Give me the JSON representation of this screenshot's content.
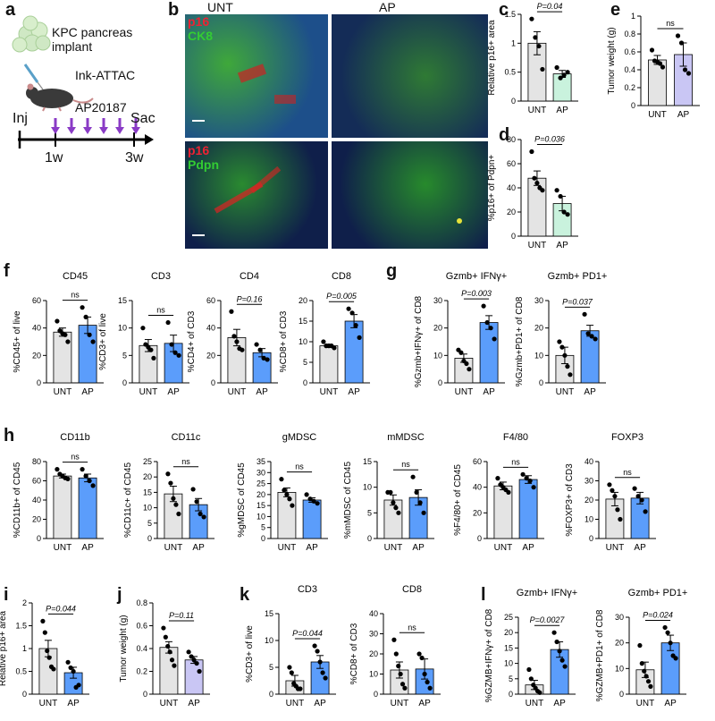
{
  "panels": {
    "a": {
      "label": "a",
      "implant_text": "KPC pancreas\nimplant",
      "mouse_text": "Ink-ATTAC",
      "drug_text": "AP20187",
      "inj": "Inj",
      "sac": "Sac",
      "t1": "1w",
      "t3": "3w"
    },
    "b": {
      "label": "b",
      "col_untreated": "UNT",
      "col_ap": "AP",
      "top_stain_red": "p16",
      "top_stain_green": "CK8",
      "bottom_stain_red": "p16",
      "bottom_stain_green": "Pdpn"
    },
    "c": {
      "label": "c"
    },
    "d": {
      "label": "d"
    },
    "e": {
      "label": "e"
    },
    "f": {
      "label": "f"
    },
    "g": {
      "label": "g"
    },
    "h": {
      "label": "h"
    },
    "i": {
      "label": "i"
    },
    "j": {
      "label": "j"
    },
    "k": {
      "label": "k"
    },
    "l": {
      "label": "l"
    }
  },
  "colors": {
    "unt": "#e4e4e4",
    "ap_green": "#c9f2dd",
    "ap_purple": "#c9c6f4",
    "ap_blue": "#5b9dfb"
  },
  "chart_data": [
    {
      "id": "c",
      "type": "bar",
      "categories": [
        "UNT",
        "AP"
      ],
      "values": [
        1.0,
        0.47
      ],
      "errors": [
        0.2,
        0.06
      ],
      "points": [
        [
          1.42,
          1.1,
          0.95,
          0.55
        ],
        [
          0.58,
          0.4,
          0.45,
          0.5
        ]
      ],
      "title": "",
      "ylabel": "Relative p16+ area",
      "ylim": [
        0,
        1.5
      ],
      "yticks": [
        0.0,
        0.5,
        1.0,
        1.5
      ],
      "stat": "P=0.04",
      "ap_color": "ap_green"
    },
    {
      "id": "d",
      "type": "bar",
      "categories": [
        "UNT",
        "AP"
      ],
      "values": [
        48,
        27
      ],
      "errors": [
        6,
        6
      ],
      "points": [
        [
          70,
          48,
          44,
          40,
          38
        ],
        [
          38,
          33,
          20,
          18
        ]
      ],
      "title": "",
      "ylabel": "%p16+ of Pdpn+",
      "ylim": [
        0,
        80
      ],
      "yticks": [
        0,
        20,
        40,
        60,
        80
      ],
      "stat": "P=0.036",
      "ap_color": "ap_green"
    },
    {
      "id": "e",
      "type": "bar",
      "categories": [
        "UNT",
        "AP"
      ],
      "values": [
        0.51,
        0.57
      ],
      "errors": [
        0.05,
        0.13
      ],
      "points": [
        [
          0.62,
          0.5,
          0.49,
          0.47,
          0.43
        ],
        [
          0.78,
          0.7,
          0.4,
          0.36
        ]
      ],
      "title": "",
      "ylabel": "Tumor weight (g)",
      "ylim": [
        0,
        1.0
      ],
      "yticks": [
        0.0,
        0.2,
        0.4,
        0.6,
        0.8,
        1.0
      ],
      "stat": "ns",
      "ap_color": "ap_purple"
    },
    {
      "id": "f1",
      "type": "bar",
      "categories": [
        "UNT",
        "AP"
      ],
      "values": [
        37,
        42
      ],
      "errors": [
        3,
        6
      ],
      "points": [
        [
          45,
          38,
          36,
          35,
          30
        ],
        [
          55,
          48,
          35,
          30
        ]
      ],
      "title": "CD45",
      "ylabel": "%CD45+ of live",
      "ylim": [
        0,
        60
      ],
      "yticks": [
        0,
        20,
        40,
        60
      ],
      "stat": "ns",
      "ap_color": "ap_blue"
    },
    {
      "id": "f2",
      "type": "bar",
      "categories": [
        "UNT",
        "AP"
      ],
      "values": [
        6.8,
        7.2
      ],
      "errors": [
        1.1,
        1.5
      ],
      "points": [
        [
          10,
          7,
          6.5,
          6,
          4.5
        ],
        [
          11,
          7,
          5.5,
          5
        ]
      ],
      "title": "CD3",
      "ylabel": "%CD3+ of live",
      "ylim": [
        0,
        15
      ],
      "yticks": [
        0,
        5,
        10,
        15
      ],
      "stat": "ns",
      "ap_color": "ap_blue"
    },
    {
      "id": "f3",
      "type": "bar",
      "categories": [
        "UNT",
        "AP"
      ],
      "values": [
        33,
        22
      ],
      "errors": [
        6,
        3
      ],
      "points": [
        [
          52,
          34,
          30,
          25,
          24
        ],
        [
          28,
          24,
          18,
          17
        ]
      ],
      "title": "CD4",
      "ylabel": "%CD4+ of CD3",
      "ylim": [
        0,
        60
      ],
      "yticks": [
        0,
        20,
        40,
        60
      ],
      "stat": "P=0.16",
      "ap_color": "ap_blue"
    },
    {
      "id": "f4",
      "type": "bar",
      "categories": [
        "UNT",
        "AP"
      ],
      "values": [
        9,
        15
      ],
      "errors": [
        0.4,
        1.6
      ],
      "points": [
        [
          10,
          9,
          9,
          9,
          8.5
        ],
        [
          18,
          17,
          14,
          11
        ]
      ],
      "title": "CD8",
      "ylabel": "%CD8+ of CD3",
      "ylim": [
        0,
        20
      ],
      "yticks": [
        0,
        5,
        10,
        15,
        20
      ],
      "stat": "P=0.005",
      "ap_color": "ap_blue"
    },
    {
      "id": "g1",
      "type": "bar",
      "categories": [
        "UNT",
        "AP"
      ],
      "values": [
        9,
        22
      ],
      "errors": [
        1.5,
        2.5
      ],
      "points": [
        [
          12,
          11,
          8,
          7,
          5
        ],
        [
          28,
          22,
          20,
          16
        ]
      ],
      "title": "Gzmb+ IFNγ+",
      "ylabel": "%Gzmb+IFNγ+ of CD8",
      "ylim": [
        0,
        30
      ],
      "yticks": [
        0,
        10,
        20,
        30
      ],
      "stat": "P=0.003",
      "ap_color": "ap_blue"
    },
    {
      "id": "g2",
      "type": "bar",
      "categories": [
        "UNT",
        "AP"
      ],
      "values": [
        10,
        19
      ],
      "errors": [
        3,
        2
      ],
      "points": [
        [
          15,
          13,
          10,
          6,
          3
        ],
        [
          25,
          18,
          17,
          16
        ]
      ],
      "title": "Gzmb+ PD1+",
      "ylabel": "%Gzmb+PD1+ of CD8",
      "ylim": [
        0,
        30
      ],
      "yticks": [
        0,
        10,
        20,
        30
      ],
      "stat": "P=0.037",
      "ap_color": "ap_blue"
    },
    {
      "id": "h1",
      "type": "bar",
      "categories": [
        "UNT",
        "AP"
      ],
      "values": [
        65,
        63
      ],
      "errors": [
        2,
        4
      ],
      "points": [
        [
          72,
          67,
          65,
          63,
          62
        ],
        [
          72,
          65,
          60,
          55
        ]
      ],
      "title": "CD11b",
      "ylabel": "%CD11b+ of CD45",
      "ylim": [
        0,
        80
      ],
      "yticks": [
        0,
        20,
        40,
        60,
        80
      ],
      "stat": "ns",
      "ap_color": "ap_blue"
    },
    {
      "id": "h2",
      "type": "bar",
      "categories": [
        "UNT",
        "AP"
      ],
      "values": [
        14.5,
        11
      ],
      "errors": [
        2.5,
        2
      ],
      "points": [
        [
          21,
          18,
          13,
          11,
          8
        ],
        [
          16,
          12,
          8,
          7
        ]
      ],
      "title": "CD11c",
      "ylabel": "%CD11c+ of CD45",
      "ylim": [
        0,
        25
      ],
      "yticks": [
        0,
        5,
        10,
        15,
        20,
        25
      ],
      "stat": "ns",
      "ap_color": "ap_blue"
    },
    {
      "id": "h3",
      "type": "bar",
      "categories": [
        "UNT",
        "AP"
      ],
      "values": [
        21,
        17.5
      ],
      "errors": [
        2,
        1
      ],
      "points": [
        [
          27,
          22,
          20,
          18,
          15
        ],
        [
          20,
          18,
          17,
          16
        ]
      ],
      "title": "gMDSC",
      "ylabel": "%gMDSC of CD45",
      "ylim": [
        0,
        35
      ],
      "yticks": [
        0,
        5,
        10,
        15,
        20,
        25,
        30,
        35
      ],
      "stat": "ns",
      "ap_color": "ap_blue"
    },
    {
      "id": "h4",
      "type": "bar",
      "categories": [
        "UNT",
        "AP"
      ],
      "values": [
        7.5,
        8
      ],
      "errors": [
        1,
        1.5
      ],
      "points": [
        [
          9,
          9,
          7,
          6,
          5
        ],
        [
          12,
          9,
          7,
          5
        ]
      ],
      "title": "mMDSC",
      "ylabel": "%mMDSC of CD45",
      "ylim": [
        0,
        15
      ],
      "yticks": [
        0,
        5,
        10,
        15
      ],
      "stat": "ns",
      "ap_color": "ap_blue"
    },
    {
      "id": "h5",
      "type": "bar",
      "categories": [
        "UNT",
        "AP"
      ],
      "values": [
        41,
        46
      ],
      "errors": [
        3,
        3
      ],
      "points": [
        [
          47,
          42,
          40,
          38,
          36
        ],
        [
          50,
          47,
          45,
          40
        ]
      ],
      "title": "F4/80",
      "ylabel": "%F4/80+ of CD45",
      "ylim": [
        0,
        60
      ],
      "yticks": [
        0,
        20,
        40,
        60
      ],
      "stat": "ns",
      "ap_color": "ap_blue"
    },
    {
      "id": "h6",
      "type": "bar",
      "categories": [
        "UNT",
        "AP"
      ],
      "values": [
        20.5,
        21
      ],
      "errors": [
        3.5,
        3
      ],
      "points": [
        [
          28,
          25,
          22,
          15,
          10
        ],
        [
          26,
          22,
          20,
          14
        ]
      ],
      "title": "FOXP3",
      "ylabel": "%FOXP3+ of CD3",
      "ylim": [
        0,
        40
      ],
      "yticks": [
        0,
        10,
        20,
        30,
        40
      ],
      "stat": "ns",
      "ap_color": "ap_blue"
    },
    {
      "id": "i",
      "type": "bar",
      "categories": [
        "UNT",
        "AP"
      ],
      "values": [
        1.0,
        0.47
      ],
      "errors": [
        0.18,
        0.12
      ],
      "points": [
        [
          1.6,
          1.35,
          0.95,
          0.8,
          0.6,
          0.55
        ],
        [
          0.7,
          0.58,
          0.5,
          0.15,
          0.2
        ]
      ],
      "title": "",
      "ylabel": "Relative p16+ area",
      "ylim": [
        0,
        2.0
      ],
      "yticks": [
        0.0,
        0.5,
        1.0,
        1.5,
        2.0
      ],
      "stat": "P=0.044",
      "ap_color": "ap_blue"
    },
    {
      "id": "j",
      "type": "bar",
      "categories": [
        "UNT",
        "AP"
      ],
      "values": [
        0.41,
        0.3
      ],
      "errors": [
        0.05,
        0.03
      ],
      "points": [
        [
          0.58,
          0.5,
          0.42,
          0.37,
          0.3,
          0.25
        ],
        [
          0.37,
          0.33,
          0.3,
          0.27,
          0.2
        ]
      ],
      "title": "",
      "ylabel": "Tumor weight (g)",
      "ylim": [
        0,
        0.8
      ],
      "yticks": [
        0.0,
        0.2,
        0.4,
        0.6,
        0.8
      ],
      "stat": "P=0.11",
      "ap_color": "ap_purple"
    },
    {
      "id": "k1",
      "type": "bar",
      "categories": [
        "UNT",
        "AP"
      ],
      "values": [
        2.5,
        6
      ],
      "errors": [
        1,
        1.2
      ],
      "points": [
        [
          5,
          4,
          2,
          1.5,
          1,
          1
        ],
        [
          9,
          8,
          6,
          4,
          3
        ]
      ],
      "title": "CD3",
      "ylabel": "%CD3+ of live",
      "ylim": [
        0,
        15
      ],
      "yticks": [
        0,
        5,
        10,
        15
      ],
      "stat": "P=0.044",
      "ap_color": "ap_blue"
    },
    {
      "id": "k2",
      "type": "bar",
      "categories": [
        "UNT",
        "AP"
      ],
      "values": [
        12,
        12.5
      ],
      "errors": [
        4,
        5
      ],
      "points": [
        [
          27,
          20,
          14,
          10,
          5,
          3
        ],
        [
          20,
          18,
          10,
          6,
          3
        ]
      ],
      "title": "CD8",
      "ylabel": "%CD8+ of CD3",
      "ylim": [
        0,
        40
      ],
      "yticks": [
        0,
        10,
        20,
        30,
        40
      ],
      "stat": "ns",
      "ap_color": "ap_blue"
    },
    {
      "id": "l1",
      "type": "bar",
      "categories": [
        "UNT",
        "AP"
      ],
      "values": [
        3,
        14.5
      ],
      "errors": [
        1.5,
        2.5
      ],
      "points": [
        [
          8,
          5,
          3,
          2,
          1,
          0.5
        ],
        [
          20,
          17,
          14,
          11,
          9
        ]
      ],
      "title": "Gzmb+ IFNγ+",
      "ylabel": "%GZMB+IFNγ+ of CD8",
      "ylim": [
        0,
        25
      ],
      "yticks": [
        0,
        5,
        10,
        15,
        20,
        25
      ],
      "stat": "P=0.0027",
      "ap_color": "ap_blue"
    },
    {
      "id": "l2",
      "type": "bar",
      "categories": [
        "UNT",
        "AP"
      ],
      "values": [
        9.5,
        20
      ],
      "errors": [
        3,
        3
      ],
      "points": [
        [
          19,
          12,
          9,
          7,
          5,
          3
        ],
        [
          26,
          24,
          20,
          15,
          14
        ]
      ],
      "title": "Gzmb+ PD1+",
      "ylabel": "%GZMB+PD1+ of CD8",
      "ylim": [
        0,
        30
      ],
      "yticks": [
        0,
        10,
        20,
        30
      ],
      "stat": "P=0.024",
      "ap_color": "ap_blue"
    }
  ]
}
